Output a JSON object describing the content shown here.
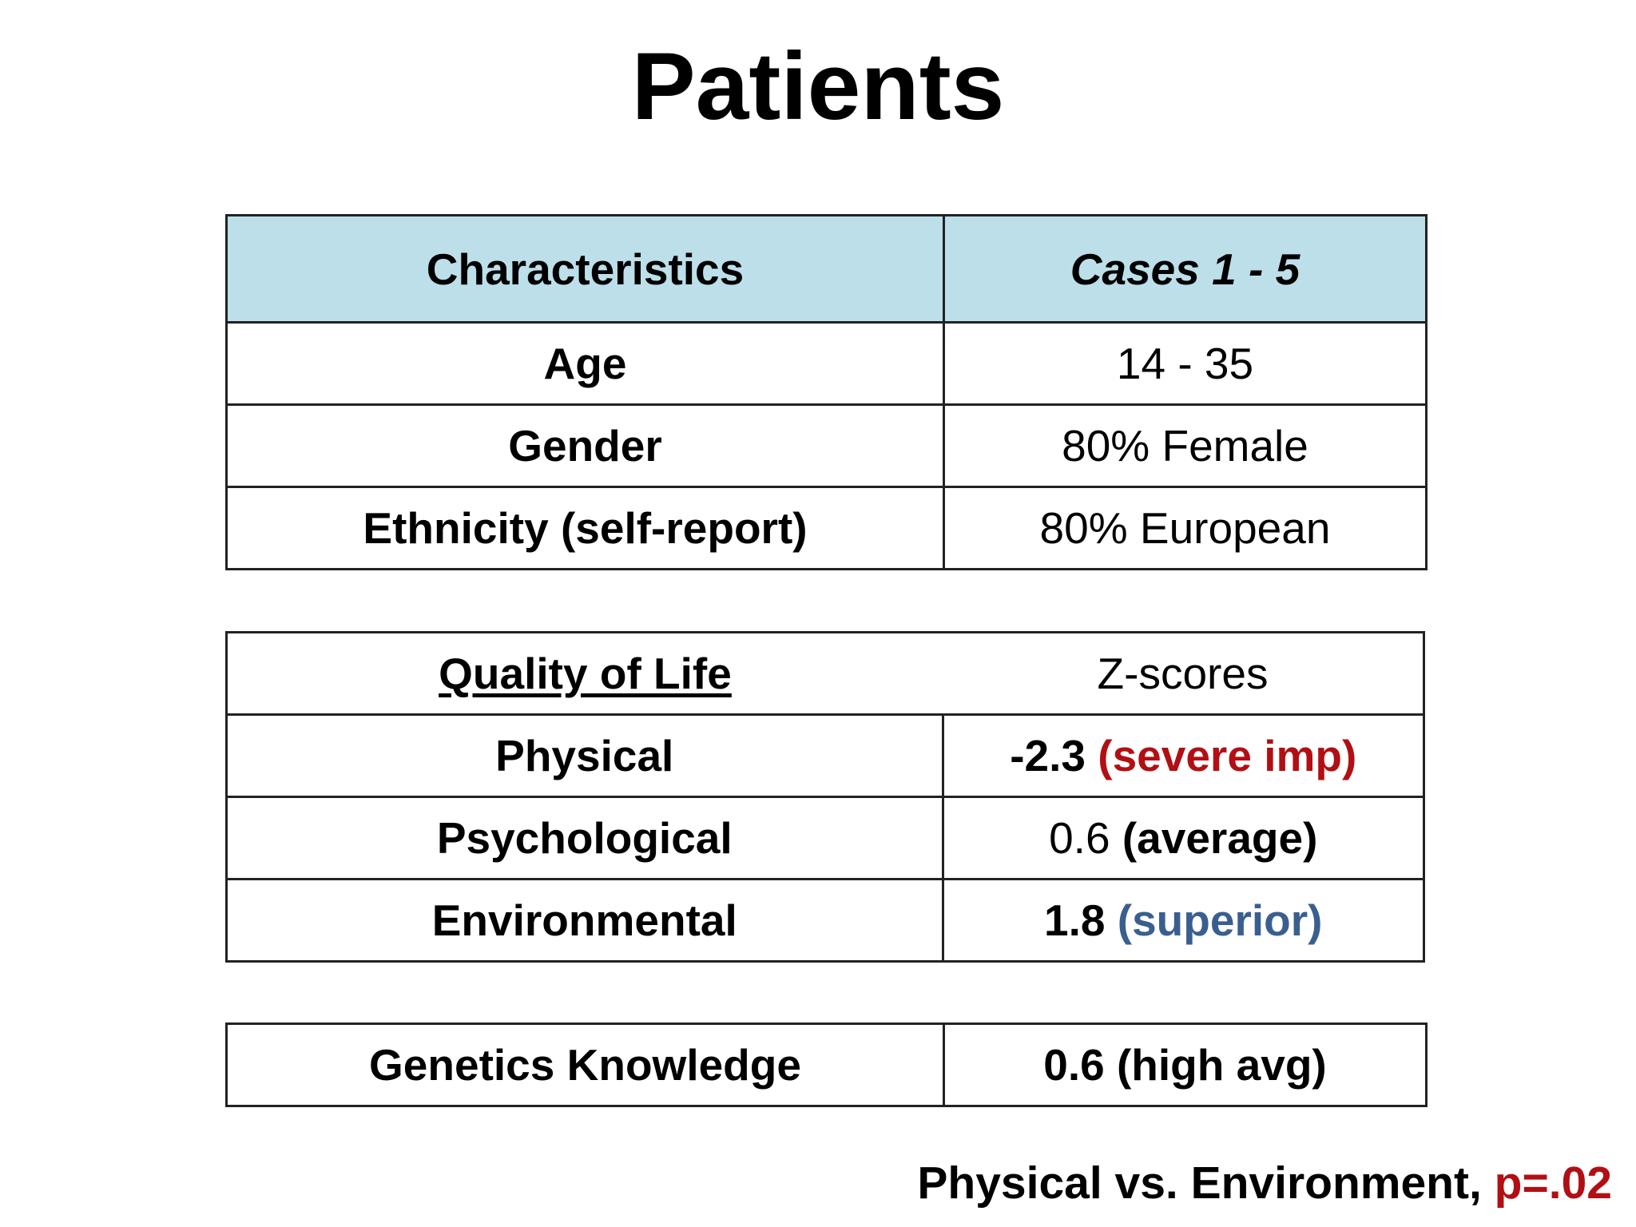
{
  "title": "Patients",
  "demographics": {
    "header": {
      "col1": "Characteristics",
      "col2": "Cases 1 - 5"
    },
    "rows": [
      {
        "label": "Age",
        "value": "14 - 35"
      },
      {
        "label": "Gender",
        "value": "80% Female"
      },
      {
        "label": "Ethnicity (self-report)",
        "value": "80% European"
      }
    ]
  },
  "quality_of_life": {
    "header": {
      "col1": "Quality of Life",
      "col2": "Z-scores"
    },
    "rows": [
      {
        "label": "Physical",
        "score": "-2.3",
        "descriptor": "(severe imp)"
      },
      {
        "label": "Psychological",
        "score": "0.6",
        "descriptor": "(average)"
      },
      {
        "label": "Environmental",
        "score": "1.8",
        "descriptor": "(superior)"
      }
    ]
  },
  "genetics": {
    "label": "Genetics Knowledge",
    "value": "0.6 (high avg)"
  },
  "footnote": {
    "text": "Physical vs. Environment, ",
    "pvalue": "p=.02"
  },
  "colors": {
    "header_bg": "#bcdfe9",
    "impairment": "#b10f14",
    "superior": "#3a5f8f"
  }
}
